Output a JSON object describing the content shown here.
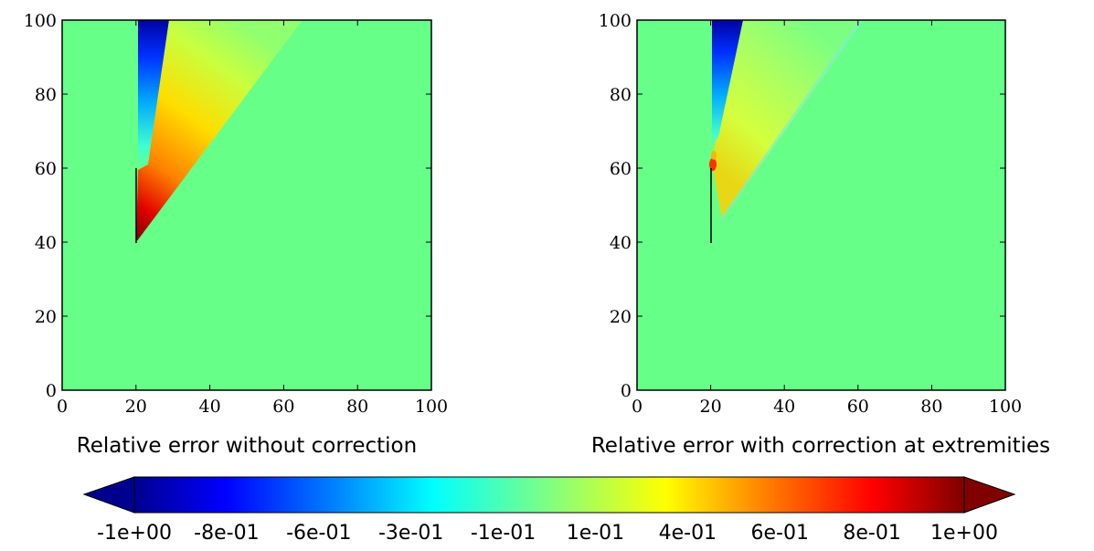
{
  "chart_data": [
    {
      "type": "heatmap",
      "xlabel": "Relative error without correction",
      "ylabel": "",
      "xlim": [
        0,
        100
      ],
      "ylim": [
        0,
        100
      ],
      "xticks": [
        "0",
        "20",
        "40",
        "60",
        "80",
        "100"
      ],
      "yticks": [
        "0",
        "20",
        "40",
        "60",
        "80",
        "100"
      ],
      "background_value": 0,
      "colormap": "jet",
      "regions": [
        {
          "label": "negative wedge",
          "value_range": [
            -1.0,
            -0.1
          ],
          "polygon": [
            [
              20,
              100
            ],
            [
              20,
              62
            ],
            [
              22,
              60
            ],
            [
              28,
              100
            ]
          ]
        },
        {
          "label": "positive wedge",
          "value_range": [
            0.1,
            1.0
          ],
          "polygon": [
            [
              20,
              40
            ],
            [
              20,
              60
            ],
            [
              28,
              100
            ],
            [
              65,
              100
            ]
          ]
        }
      ],
      "lines": [
        {
          "label": "vertical segment",
          "points": [
            [
              20,
              40
            ],
            [
              20,
              60
            ]
          ]
        }
      ]
    },
    {
      "type": "heatmap",
      "xlabel": "Relative error with correction at extremities",
      "ylabel": "",
      "xlim": [
        0,
        100
      ],
      "ylim": [
        0,
        100
      ],
      "xticks": [
        "0",
        "20",
        "40",
        "60",
        "80",
        "100"
      ],
      "yticks": [
        "0",
        "20",
        "40",
        "60",
        "80",
        "100"
      ],
      "background_value": 0,
      "colormap": "jet",
      "regions": [
        {
          "label": "negative wedge",
          "value_range": [
            -1.0,
            -0.1
          ],
          "polygon": [
            [
              20,
              100
            ],
            [
              20,
              68
            ],
            [
              22,
              66
            ],
            [
              28,
              100
            ]
          ]
        },
        {
          "label": "positive wedge",
          "value_range": [
            0.1,
            0.6
          ],
          "polygon": [
            [
              20,
              60
            ],
            [
              21,
              66
            ],
            [
              28,
              100
            ],
            [
              62,
              100
            ],
            [
              24,
              46
            ]
          ]
        }
      ],
      "lines": [
        {
          "label": "vertical segment",
          "points": [
            [
              20,
              40
            ],
            [
              20,
              60
            ]
          ]
        }
      ]
    }
  ],
  "colorbar": {
    "colormap": "jet",
    "range": [
      -1.0,
      1.0
    ],
    "extend": "both",
    "tick_labels": [
      "-1e+00",
      "-8e-01",
      "-6e-01",
      "-3e-01",
      "-1e-01",
      "1e-01",
      "4e-01",
      "6e-01",
      "8e-01",
      "1e+00"
    ]
  },
  "colors": {
    "background": "#66ff88",
    "jet": [
      "#00008f",
      "#0000ff",
      "#0080ff",
      "#00ffff",
      "#80ff80",
      "#ffff00",
      "#ff8000",
      "#ff0000",
      "#800000"
    ]
  }
}
